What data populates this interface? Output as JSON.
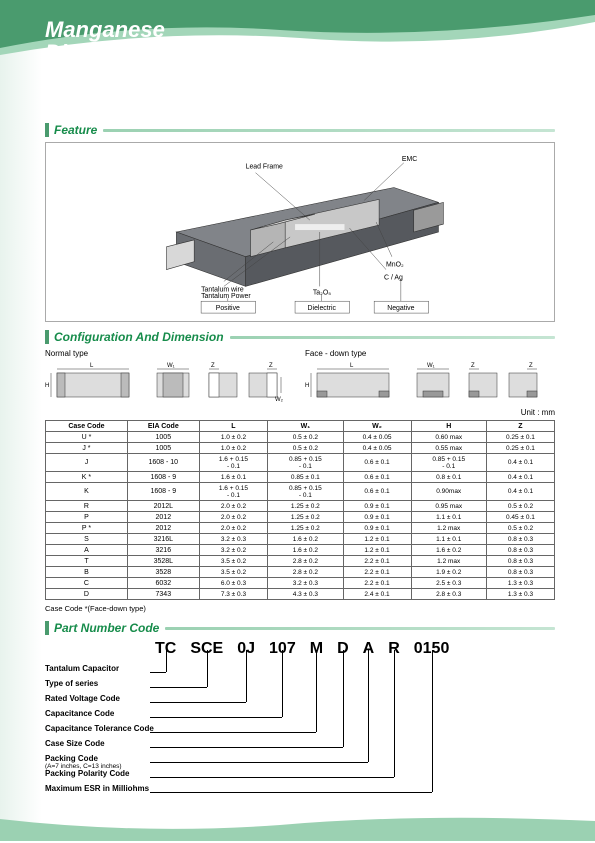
{
  "title_line1": "Manganese",
  "title_line2": "Dioxide Type",
  "sections": {
    "feature": "Feature",
    "config": "Configuration And Dimension",
    "partcode": "Part Number Code"
  },
  "feature": {
    "labels": {
      "lead_frame": "Lead Frame",
      "emc": "EMC",
      "tantalum_wire": "Tantalum wire",
      "tantalum_powder": "Tantalum Power",
      "ta2o5": "Ta₂O₅",
      "c_ag": "C / Ag",
      "mno2": "MnO₂"
    },
    "boxes": {
      "positive": "Positive",
      "dielectric": "Dielectric",
      "negative": "Negative"
    },
    "colors": {
      "body": "#6a6d72",
      "body_top": "#818489",
      "cut_side": "#c0c0c0",
      "frame": "#d8d8d8",
      "lines": "#333"
    }
  },
  "dimensions": {
    "normal_label": "Normal type",
    "face_down_label": "Face - down type",
    "unit_label": "Unit : mm",
    "dim_letters": {
      "L": "L",
      "W1": "W₁",
      "W2": "W₂",
      "H": "H",
      "Z": "Z"
    }
  },
  "table": {
    "headers": [
      "Case Code",
      "EIA Code",
      "L",
      "W₁",
      "W₂",
      "H",
      "Z"
    ],
    "rows": [
      [
        "U *",
        "1005",
        "1.0 ± 0.2",
        "0.5 ± 0.2",
        "0.4 ± 0.05",
        "0.60 max",
        "0.25 ± 0.1"
      ],
      [
        "J *",
        "1005",
        "1.0 ± 0.2",
        "0.5 ± 0.2",
        "0.4 ± 0.05",
        "0.55 max",
        "0.25 ± 0.1"
      ],
      [
        "J",
        "1608 - 10",
        "1.6 + 0.15\n- 0.1",
        "0.85 + 0.15\n- 0.1",
        "0.6 ± 0.1",
        "0.85 + 0.15\n- 0.1",
        "0.4 ± 0.1"
      ],
      [
        "K *",
        "1608 - 9",
        "1.6 ± 0.1",
        "0.85 ± 0.1",
        "0.6 ± 0.1",
        "0.8 ± 0.1",
        "0.4 ± 0.1"
      ],
      [
        "K",
        "1608 - 9",
        "1.6 + 0.15\n- 0.1",
        "0.85 + 0.15\n- 0.1",
        "0.6 ± 0.1",
        "0.90max",
        "0.4 ± 0.1"
      ],
      [
        "R",
        "2012L",
        "2.0 ± 0.2",
        "1.25 ± 0.2",
        "0.9 ± 0.1",
        "0.95 max",
        "0.5 ± 0.2"
      ],
      [
        "P",
        "2012",
        "2.0 ± 0.2",
        "1.25 ± 0.2",
        "0.9 ± 0.1",
        "1.1 ± 0.1",
        "0.45 ± 0.1"
      ],
      [
        "P *",
        "2012",
        "2.0 ± 0.2",
        "1.25 ± 0.2",
        "0.9 ± 0.1",
        "1.2 max",
        "0.5 ± 0.2"
      ],
      [
        "S",
        "3216L",
        "3.2 ± 0.3",
        "1.6 ± 0.2",
        "1.2 ± 0.1",
        "1.1 ± 0.1",
        "0.8 ± 0.3"
      ],
      [
        "A",
        "3216",
        "3.2 ± 0.2",
        "1.6 ± 0.2",
        "1.2 ± 0.1",
        "1.6 ± 0.2",
        "0.8 ± 0.3"
      ],
      [
        "T",
        "3528L",
        "3.5 ± 0.2",
        "2.8 ± 0.2",
        "2.2 ± 0.1",
        "1.2 max",
        "0.8 ± 0.3"
      ],
      [
        "B",
        "3528",
        "3.5 ± 0.2",
        "2.8 ± 0.2",
        "2.2 ± 0.1",
        "1.9 ± 0.2",
        "0.8 ± 0.3"
      ],
      [
        "C",
        "6032",
        "6.0 ± 0.3",
        "3.2 ± 0.3",
        "2.2 ± 0.1",
        "2.5 ± 0.3",
        "1.3 ± 0.3"
      ],
      [
        "D",
        "7343",
        "7.3 ± 0.3",
        "4.3 ± 0.3",
        "2.4 ± 0.1",
        "2.8 ± 0.3",
        "1.3 ± 0.3"
      ]
    ],
    "note": "Case Code *(Face-down type)"
  },
  "part_number": {
    "segments": [
      "TC",
      "SCE",
      "0J",
      "107",
      "M",
      "D",
      "A",
      "R",
      "0150"
    ],
    "items": [
      "Tantalum Capacitor",
      "Type of series",
      "Rated Voltage Code",
      "Capacitance Code",
      "Capacitance Tolerance Code",
      "Case Size Code",
      "Packing Code|(A=7 inches, C=13 inches)",
      "Packing Polarity Code",
      "Maximum ESR in Milliohms"
    ]
  }
}
